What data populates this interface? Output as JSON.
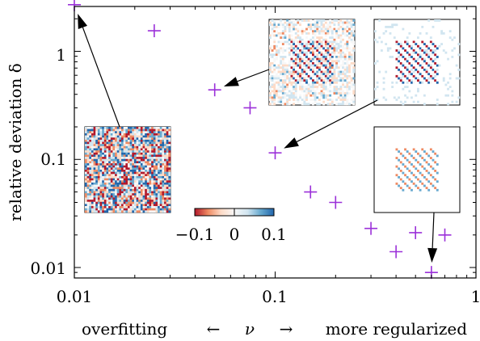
{
  "chart_data": {
    "type": "scatter",
    "x_scale": "log",
    "y_scale": "log",
    "xlim": [
      0.01,
      1
    ],
    "ylim": [
      0.008,
      2.6
    ],
    "xticks": [
      {
        "value": 0.01,
        "label": "0.01"
      },
      {
        "value": 0.1,
        "label": "0.1"
      },
      {
        "value": 1,
        "label": "1"
      }
    ],
    "yticks": [
      {
        "value": 0.01,
        "label": "0.01"
      },
      {
        "value": 0.1,
        "label": "0.1"
      },
      {
        "value": 1,
        "label": "1"
      }
    ],
    "xlabel": {
      "left": "overfitting",
      "left_arrow": "←",
      "symbol": "ν",
      "right_arrow": "→",
      "right": "more regularized"
    },
    "ylabel": "relative deviation δ",
    "grid": false,
    "marker": "+",
    "marker_color": "#9b30d9",
    "points": [
      {
        "x": 0.01,
        "y": 2.7
      },
      {
        "x": 0.025,
        "y": 1.55
      },
      {
        "x": 0.05,
        "y": 0.44
      },
      {
        "x": 0.075,
        "y": 0.3
      },
      {
        "x": 0.1,
        "y": 0.115
      },
      {
        "x": 0.15,
        "y": 0.05
      },
      {
        "x": 0.2,
        "y": 0.04
      },
      {
        "x": 0.3,
        "y": 0.023
      },
      {
        "x": 0.4,
        "y": 0.014
      },
      {
        "x": 0.5,
        "y": 0.021
      },
      {
        "x": 0.6,
        "y": 0.009
      },
      {
        "x": 0.7,
        "y": 0.02
      }
    ],
    "colorbar": {
      "ticks": [
        "−0.1",
        "0",
        "0.1"
      ],
      "colormap": [
        "#b2182b",
        "#ef8a62",
        "#fddbc7",
        "#f7f7f7",
        "#d1e5f0",
        "#67a9cf",
        "#2166ac"
      ]
    },
    "insets": [
      {
        "pattern": "noise",
        "points_to": 0
      },
      {
        "pattern": "faint-frame",
        "points_to": 2
      },
      {
        "pattern": "clean-faint",
        "points_to": 4
      },
      {
        "pattern": "clean",
        "points_to": 10
      }
    ]
  }
}
